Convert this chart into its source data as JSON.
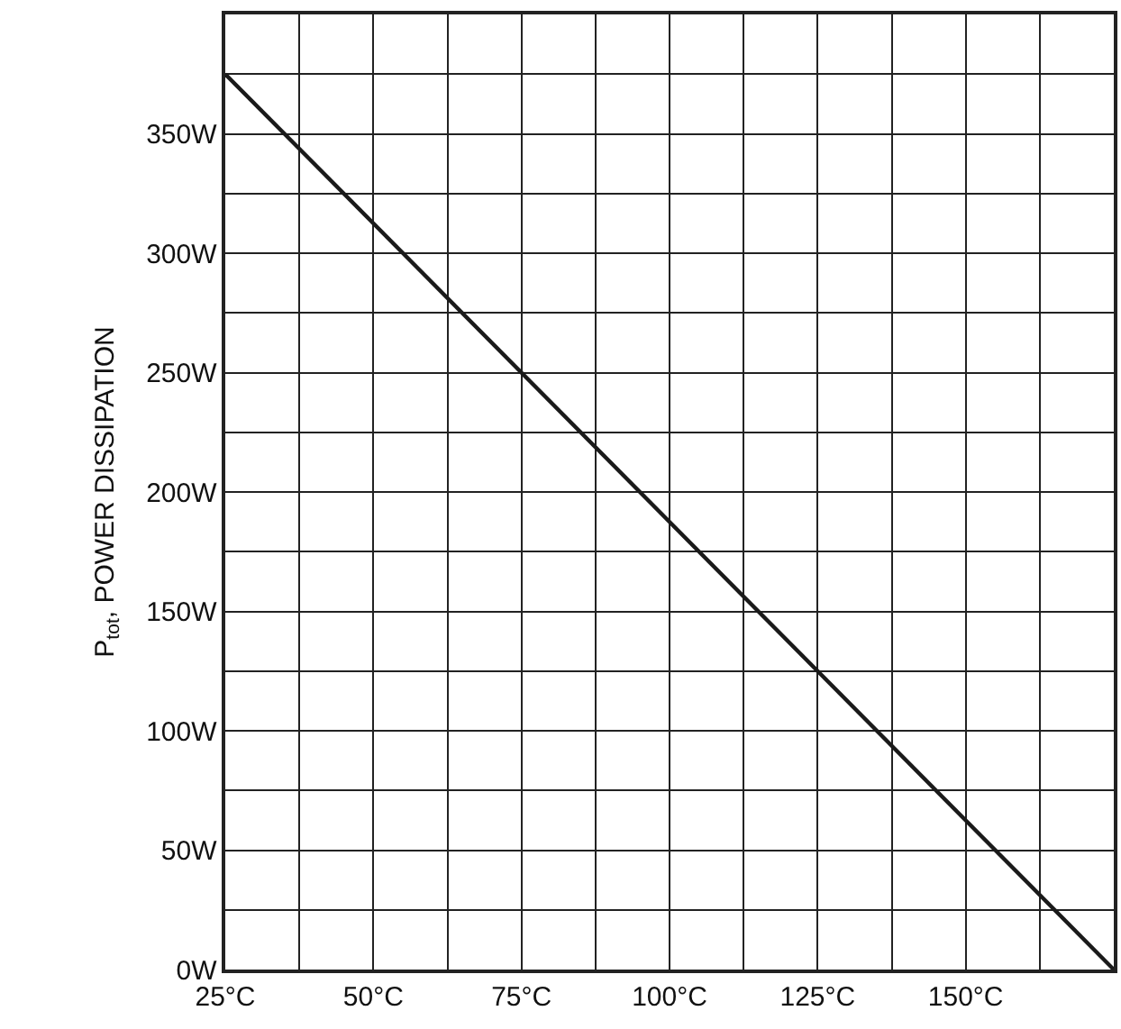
{
  "chart_data": {
    "type": "line",
    "ylabel": "P$_{tot}$, POWER DISSIPATION",
    "x": [
      25,
      175
    ],
    "series": [
      {
        "color": "#1a1a1a",
        "values": [
          375,
          0
        ]
      }
    ],
    "xlim": [
      25,
      175
    ],
    "ylim": [
      0,
      400
    ],
    "xticks": [
      {
        "value": 25,
        "label": "25°C"
      },
      {
        "value": 37.5,
        "label": null
      },
      {
        "value": 50,
        "label": "50°C"
      },
      {
        "value": 62.5,
        "label": null
      },
      {
        "value": 75,
        "label": "75°C"
      },
      {
        "value": 87.5,
        "label": null
      },
      {
        "value": 100,
        "label": "100°C"
      },
      {
        "value": 112.5,
        "label": null
      },
      {
        "value": 125,
        "label": "125°C"
      },
      {
        "value": 137.5,
        "label": null
      },
      {
        "value": 150,
        "label": "150°C"
      },
      {
        "value": 162.5,
        "label": null
      },
      {
        "value": 175,
        "label": null
      }
    ],
    "yticks": [
      {
        "value": 0,
        "label": "0W"
      },
      {
        "value": 25,
        "label": null
      },
      {
        "value": 50,
        "label": "50W"
      },
      {
        "value": 75,
        "label": null
      },
      {
        "value": 100,
        "label": "100W"
      },
      {
        "value": 125,
        "label": null
      },
      {
        "value": 150,
        "label": "150W"
      },
      {
        "value": 175,
        "label": null
      },
      {
        "value": 200,
        "label": "200W"
      },
      {
        "value": 225,
        "label": null
      },
      {
        "value": 250,
        "label": "250W"
      },
      {
        "value": 275,
        "label": null
      },
      {
        "value": 300,
        "label": "300W"
      },
      {
        "value": 325,
        "label": null
      },
      {
        "value": 350,
        "label": "350W"
      },
      {
        "value": 375,
        "label": null
      },
      {
        "value": 400,
        "label": null
      }
    ],
    "grid": true,
    "marker": "none",
    "line_style": "solid"
  }
}
